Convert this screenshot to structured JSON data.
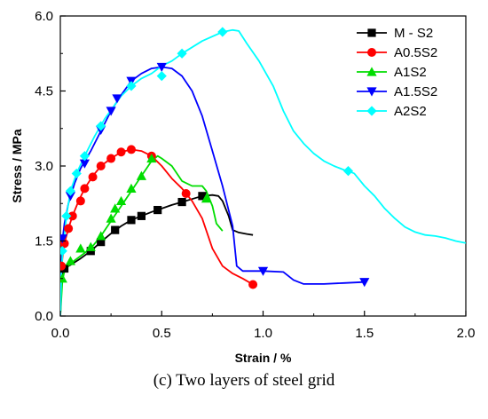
{
  "caption": "(c) Two layers of steel grid",
  "chart_data": {
    "type": "line",
    "xlabel": "Strain / %",
    "ylabel": "Stress / MPa",
    "xlim": [
      0.0,
      2.0
    ],
    "ylim": [
      0.0,
      6.0
    ],
    "xticks": [
      "0.0",
      "0.5",
      "1.0",
      "1.5",
      "2.0"
    ],
    "xtick_values": [
      0.0,
      0.5,
      1.0,
      1.5,
      2.0
    ],
    "yticks": [
      "0.0",
      "1.5",
      "3.0",
      "4.5",
      "6.0"
    ],
    "ytick_values": [
      0.0,
      1.5,
      3.0,
      4.5,
      6.0
    ],
    "legend_position": "top-right",
    "grid": false,
    "series": [
      {
        "name": "M - S2",
        "color": "#000000",
        "marker": "square",
        "points": [
          [
            0.0,
            0.0
          ],
          [
            0.005,
            0.6
          ],
          [
            0.01,
            0.85
          ],
          [
            0.02,
            0.95
          ],
          [
            0.05,
            1.02
          ],
          [
            0.1,
            1.15
          ],
          [
            0.15,
            1.3
          ],
          [
            0.2,
            1.48
          ],
          [
            0.25,
            1.65
          ],
          [
            0.3,
            1.8
          ],
          [
            0.35,
            1.92
          ],
          [
            0.4,
            2.0
          ],
          [
            0.45,
            2.08
          ],
          [
            0.5,
            2.15
          ],
          [
            0.55,
            2.22
          ],
          [
            0.6,
            2.28
          ],
          [
            0.65,
            2.34
          ],
          [
            0.7,
            2.4
          ],
          [
            0.75,
            2.42
          ],
          [
            0.78,
            2.4
          ],
          [
            0.8,
            2.3
          ],
          [
            0.83,
            2.0
          ],
          [
            0.85,
            1.72
          ],
          [
            0.88,
            1.67
          ],
          [
            0.92,
            1.64
          ],
          [
            0.95,
            1.62
          ]
        ],
        "markers": [
          [
            0.02,
            0.95
          ],
          [
            0.15,
            1.3
          ],
          [
            0.2,
            1.48
          ],
          [
            0.27,
            1.72
          ],
          [
            0.35,
            1.92
          ],
          [
            0.4,
            2.0
          ],
          [
            0.48,
            2.12
          ],
          [
            0.6,
            2.28
          ],
          [
            0.7,
            2.4
          ]
        ]
      },
      {
        "name": "A0.5S2",
        "color": "#ff0000",
        "marker": "circle",
        "points": [
          [
            0.0,
            0.0
          ],
          [
            0.005,
            0.8
          ],
          [
            0.01,
            1.15
          ],
          [
            0.02,
            1.45
          ],
          [
            0.04,
            1.75
          ],
          [
            0.06,
            2.0
          ],
          [
            0.09,
            2.3
          ],
          [
            0.12,
            2.55
          ],
          [
            0.16,
            2.8
          ],
          [
            0.2,
            3.0
          ],
          [
            0.25,
            3.15
          ],
          [
            0.3,
            3.28
          ],
          [
            0.35,
            3.33
          ],
          [
            0.4,
            3.3
          ],
          [
            0.45,
            3.2
          ],
          [
            0.5,
            3.0
          ],
          [
            0.55,
            2.75
          ],
          [
            0.6,
            2.55
          ],
          [
            0.62,
            2.45
          ],
          [
            0.65,
            2.3
          ],
          [
            0.7,
            1.95
          ],
          [
            0.75,
            1.35
          ],
          [
            0.8,
            1.0
          ],
          [
            0.85,
            0.85
          ],
          [
            0.9,
            0.75
          ],
          [
            0.95,
            0.63
          ]
        ],
        "markers": [
          [
            0.005,
            1.0
          ],
          [
            0.02,
            1.45
          ],
          [
            0.04,
            1.75
          ],
          [
            0.06,
            2.0
          ],
          [
            0.1,
            2.3
          ],
          [
            0.12,
            2.55
          ],
          [
            0.16,
            2.78
          ],
          [
            0.2,
            3.0
          ],
          [
            0.25,
            3.15
          ],
          [
            0.3,
            3.28
          ],
          [
            0.35,
            3.33
          ],
          [
            0.45,
            3.2
          ],
          [
            0.62,
            2.45
          ],
          [
            0.95,
            0.63
          ]
        ]
      },
      {
        "name": "A1S2",
        "color": "#00dd00",
        "marker": "triangle-up",
        "points": [
          [
            0.0,
            0.0
          ],
          [
            0.01,
            0.7
          ],
          [
            0.02,
            0.9
          ],
          [
            0.05,
            1.05
          ],
          [
            0.1,
            1.2
          ],
          [
            0.15,
            1.35
          ],
          [
            0.2,
            1.6
          ],
          [
            0.25,
            1.9
          ],
          [
            0.3,
            2.2
          ],
          [
            0.35,
            2.5
          ],
          [
            0.4,
            2.8
          ],
          [
            0.45,
            3.1
          ],
          [
            0.48,
            3.2
          ],
          [
            0.5,
            3.15
          ],
          [
            0.55,
            3.0
          ],
          [
            0.6,
            2.7
          ],
          [
            0.65,
            2.6
          ],
          [
            0.7,
            2.6
          ],
          [
            0.72,
            2.5
          ],
          [
            0.75,
            2.2
          ],
          [
            0.77,
            1.85
          ],
          [
            0.8,
            1.7
          ]
        ],
        "markers": [
          [
            0.01,
            0.75
          ],
          [
            0.05,
            1.1
          ],
          [
            0.1,
            1.35
          ],
          [
            0.15,
            1.38
          ],
          [
            0.2,
            1.6
          ],
          [
            0.25,
            1.95
          ],
          [
            0.27,
            2.15
          ],
          [
            0.3,
            2.3
          ],
          [
            0.35,
            2.55
          ],
          [
            0.4,
            2.8
          ],
          [
            0.45,
            3.15
          ],
          [
            0.72,
            2.35
          ]
        ]
      },
      {
        "name": "A1.5S2",
        "color": "#0000ff",
        "marker": "triangle-down",
        "points": [
          [
            0.0,
            0.0
          ],
          [
            0.005,
            1.0
          ],
          [
            0.01,
            1.5
          ],
          [
            0.02,
            1.85
          ],
          [
            0.04,
            2.25
          ],
          [
            0.07,
            2.65
          ],
          [
            0.1,
            2.95
          ],
          [
            0.15,
            3.3
          ],
          [
            0.2,
            3.7
          ],
          [
            0.25,
            4.1
          ],
          [
            0.3,
            4.42
          ],
          [
            0.35,
            4.7
          ],
          [
            0.4,
            4.85
          ],
          [
            0.45,
            4.95
          ],
          [
            0.5,
            4.98
          ],
          [
            0.55,
            4.95
          ],
          [
            0.6,
            4.8
          ],
          [
            0.65,
            4.5
          ],
          [
            0.7,
            4.0
          ],
          [
            0.75,
            3.3
          ],
          [
            0.8,
            2.6
          ],
          [
            0.85,
            1.8
          ],
          [
            0.87,
            1.0
          ],
          [
            0.9,
            0.9
          ],
          [
            0.95,
            0.9
          ],
          [
            1.0,
            0.9
          ],
          [
            1.1,
            0.88
          ],
          [
            1.15,
            0.72
          ],
          [
            1.2,
            0.64
          ],
          [
            1.3,
            0.64
          ],
          [
            1.4,
            0.66
          ],
          [
            1.5,
            0.68
          ]
        ],
        "markers": [
          [
            0.01,
            1.55
          ],
          [
            0.05,
            2.4
          ],
          [
            0.12,
            3.05
          ],
          [
            0.2,
            3.72
          ],
          [
            0.25,
            4.1
          ],
          [
            0.28,
            4.35
          ],
          [
            0.35,
            4.7
          ],
          [
            0.5,
            4.98
          ],
          [
            1.0,
            0.9
          ],
          [
            1.5,
            0.68
          ]
        ]
      },
      {
        "name": "A2S2",
        "color": "#00ffff",
        "marker": "diamond",
        "points": [
          [
            0.0,
            0.0
          ],
          [
            0.005,
            0.8
          ],
          [
            0.01,
            1.2
          ],
          [
            0.02,
            1.6
          ],
          [
            0.03,
            2.0
          ],
          [
            0.05,
            2.5
          ],
          [
            0.08,
            2.85
          ],
          [
            0.12,
            3.2
          ],
          [
            0.17,
            3.6
          ],
          [
            0.22,
            3.95
          ],
          [
            0.3,
            4.4
          ],
          [
            0.35,
            4.6
          ],
          [
            0.4,
            4.75
          ],
          [
            0.45,
            4.85
          ],
          [
            0.5,
            5.0
          ],
          [
            0.55,
            5.1
          ],
          [
            0.6,
            5.25
          ],
          [
            0.7,
            5.5
          ],
          [
            0.8,
            5.68
          ],
          [
            0.85,
            5.72
          ],
          [
            0.88,
            5.7
          ],
          [
            0.92,
            5.45
          ],
          [
            0.98,
            5.1
          ],
          [
            1.05,
            4.6
          ],
          [
            1.1,
            4.1
          ],
          [
            1.15,
            3.7
          ],
          [
            1.2,
            3.45
          ],
          [
            1.25,
            3.25
          ],
          [
            1.3,
            3.1
          ],
          [
            1.35,
            3.0
          ],
          [
            1.4,
            2.92
          ],
          [
            1.42,
            2.9
          ],
          [
            1.45,
            2.85
          ],
          [
            1.5,
            2.6
          ],
          [
            1.55,
            2.4
          ],
          [
            1.6,
            2.15
          ],
          [
            1.65,
            1.95
          ],
          [
            1.7,
            1.78
          ],
          [
            1.75,
            1.68
          ],
          [
            1.8,
            1.62
          ],
          [
            1.85,
            1.6
          ],
          [
            1.9,
            1.56
          ],
          [
            1.95,
            1.5
          ],
          [
            2.0,
            1.46
          ]
        ],
        "markers": [
          [
            0.01,
            1.3
          ],
          [
            0.03,
            2.0
          ],
          [
            0.05,
            2.5
          ],
          [
            0.08,
            2.85
          ],
          [
            0.12,
            3.2
          ],
          [
            0.2,
            3.8
          ],
          [
            0.35,
            4.6
          ],
          [
            0.5,
            4.8
          ],
          [
            0.6,
            5.25
          ],
          [
            0.8,
            5.68
          ],
          [
            1.42,
            2.9
          ]
        ]
      }
    ]
  }
}
